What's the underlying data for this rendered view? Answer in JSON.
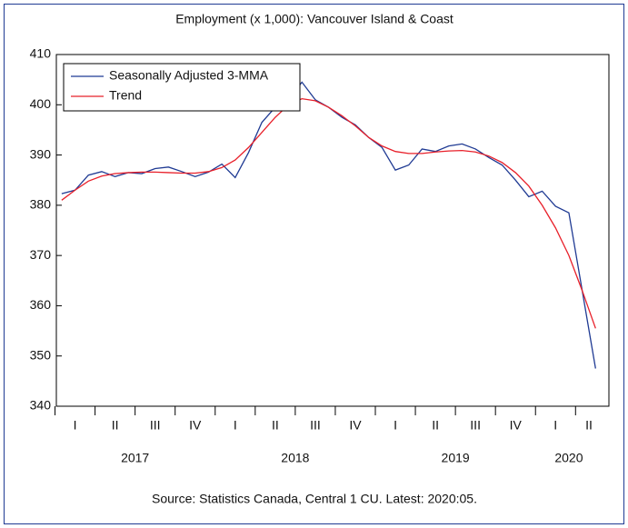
{
  "chart_data": {
    "type": "line",
    "title": "Employment (x 1,000): Vancouver Island & Coast",
    "source": "Source:  Statistics Canada, Central 1 CU. Latest: 2020:05.",
    "categories": [
      null,
      null,
      null,
      null,
      null,
      null,
      null,
      null,
      null,
      null,
      null,
      null,
      null,
      null,
      null,
      null,
      null,
      null,
      null,
      null,
      null,
      null,
      null,
      null,
      null,
      null,
      null,
      null,
      null,
      null,
      null,
      null,
      null,
      null,
      null,
      null,
      null,
      null,
      null,
      null,
      null
    ],
    "x_quarters": [
      "I",
      "II",
      "III",
      "IV",
      "I",
      "II",
      "III",
      "IV",
      "I",
      "II",
      "III",
      "IV",
      "I",
      "II"
    ],
    "x_years": [
      "2017",
      "2018",
      "2019",
      "2020"
    ],
    "series": [
      {
        "name": "Seasonally Adjusted 3-MMA",
        "color": "#1f3a93",
        "values": [
          382.3,
          383,
          386,
          386.7,
          385.7,
          386.5,
          386.3,
          387.3,
          387.6,
          386.7,
          385.7,
          386.6,
          388.2,
          385.5,
          390.5,
          396.5,
          399.5,
          401,
          404.5,
          401,
          399.5,
          397.5,
          396,
          393.5,
          391.5,
          387,
          388,
          391.2,
          390.7,
          391.8,
          392.2,
          391.2,
          389.5,
          388,
          385,
          381.7,
          382.8,
          379.8,
          378.5,
          363,
          347.5
        ]
      },
      {
        "name": "Trend",
        "color": "#e8202a",
        "values": [
          381,
          383,
          384.8,
          385.8,
          386.3,
          386.5,
          386.6,
          386.6,
          386.5,
          386.4,
          386.4,
          386.7,
          387.5,
          389,
          391.5,
          394.5,
          397.5,
          400,
          401.2,
          400.8,
          399.5,
          397.8,
          395.8,
          393.5,
          391.8,
          390.7,
          390.3,
          390.3,
          390.6,
          390.8,
          390.9,
          390.6,
          389.8,
          388.5,
          386.5,
          383.8,
          380,
          375.5,
          370,
          363,
          355.5
        ]
      }
    ],
    "ylim": [
      340,
      410
    ],
    "yticks": [
      340,
      350,
      360,
      370,
      380,
      390,
      400,
      410
    ],
    "legend": "top-left"
  }
}
